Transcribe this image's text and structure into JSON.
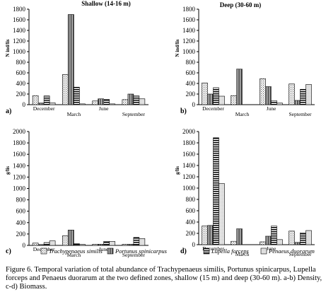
{
  "figure": {
    "caption": "Figure 6. Temporal variation of total abundance of Trachypenaeus similis, Portunus spinicarpus, Lupella forceps and Penaeus duorarum at the two defined zones, shallow (15 m) and deep (30-60 m). a-b) Density, c-d) Biomass.",
    "legend": [
      {
        "label": "Trachypenaeus similis",
        "pattern": "dots"
      },
      {
        "label": "Portunus spinicarpus",
        "pattern": "vertical"
      },
      {
        "label": "Lupella forceps",
        "pattern": "horizontal"
      },
      {
        "label": "Penaeus duorarum",
        "pattern": "light"
      }
    ]
  },
  "chart_data": [
    {
      "type": "bar",
      "panel": "a)",
      "title": "Shallow (14-16 m)",
      "ylabel": "N ind/lis",
      "ylim": [
        0,
        1800
      ],
      "yticks": [
        0,
        200,
        400,
        600,
        800,
        1000,
        1200,
        1400,
        1600,
        1800
      ],
      "categories": [
        "December",
        "March",
        "June",
        "September"
      ],
      "series": [
        {
          "values": [
            170,
            570,
            70,
            95
          ]
        },
        {
          "values": [
            30,
            1700,
            110,
            200
          ]
        },
        {
          "values": [
            165,
            330,
            100,
            165
          ]
        },
        {
          "values": [
            35,
            15,
            15,
            110
          ]
        }
      ]
    },
    {
      "type": "bar",
      "panel": "b)",
      "title": "Deep (30-60 m)",
      "ylabel": "N ind/lis",
      "ylim": [
        0,
        1800
      ],
      "yticks": [
        0,
        200,
        400,
        600,
        800,
        1000,
        1200,
        1400,
        1600,
        1800
      ],
      "categories": [
        "December",
        "March",
        "June",
        "September"
      ],
      "series": [
        {
          "values": [
            410,
            170,
            490,
            390
          ]
        },
        {
          "values": [
            200,
            670,
            340,
            80
          ]
        },
        {
          "values": [
            320,
            0,
            75,
            290
          ]
        },
        {
          "values": [
            160,
            0,
            30,
            380
          ]
        }
      ]
    },
    {
      "type": "bar",
      "panel": "c)",
      "title": "",
      "ylabel": "g/lis",
      "ylim": [
        0,
        2000
      ],
      "yticks": [
        0,
        200,
        400,
        600,
        800,
        1000,
        1200,
        1400,
        1600,
        1800,
        2000
      ],
      "categories": [
        "December",
        "March",
        "June",
        "September"
      ],
      "series": [
        {
          "values": [
            40,
            170,
            20,
            20
          ]
        },
        {
          "values": [
            15,
            270,
            20,
            20
          ]
        },
        {
          "values": [
            50,
            30,
            70,
            140
          ]
        },
        {
          "values": [
            80,
            20,
            70,
            120
          ]
        }
      ]
    },
    {
      "type": "bar",
      "panel": "d)",
      "title": "",
      "ylabel": "g/lis",
      "ylim": [
        0,
        2000
      ],
      "yticks": [
        0,
        200,
        400,
        600,
        800,
        1000,
        1200,
        1400,
        1600,
        1800,
        2000
      ],
      "categories": [
        "December",
        "March",
        "June",
        "September"
      ],
      "series": [
        {
          "values": [
            330,
            60,
            50,
            240
          ]
        },
        {
          "values": [
            340,
            280,
            150,
            40
          ]
        },
        {
          "values": [
            1890,
            0,
            330,
            210
          ]
        },
        {
          "values": [
            1080,
            0,
            90,
            250
          ]
        }
      ]
    }
  ]
}
